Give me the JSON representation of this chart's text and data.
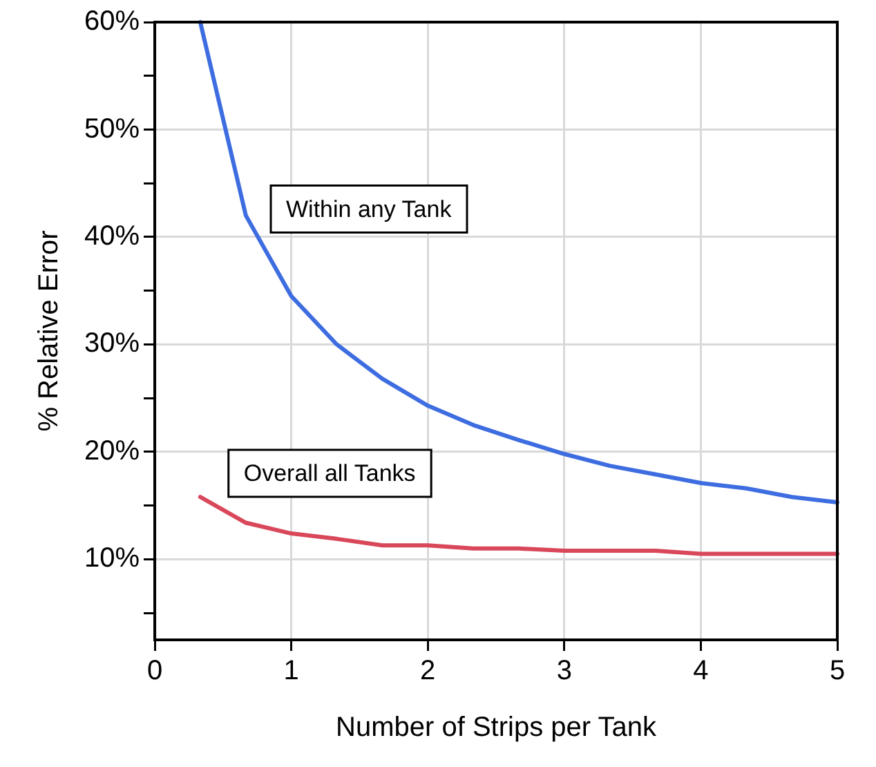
{
  "chart_data": {
    "type": "line",
    "xlabel": "Number of Strips per Tank",
    "ylabel": "% Relative Error",
    "x": [
      0.333,
      0.667,
      1,
      1.333,
      1.667,
      2,
      2.333,
      2.667,
      3,
      3.333,
      3.667,
      4,
      4.333,
      4.667,
      5
    ],
    "series": [
      {
        "name": "Within any Tank",
        "color": "#3d6de0",
        "values": [
          60,
          42,
          34.5,
          30,
          26.8,
          24.3,
          22.5,
          21.1,
          19.8,
          18.7,
          17.9,
          17.1,
          16.6,
          15.8,
          15.3
        ]
      },
      {
        "name": "Overall all Tanks",
        "color": "#d9475a",
        "values": [
          15.8,
          13.4,
          12.4,
          11.9,
          11.3,
          11.3,
          11,
          11,
          10.8,
          10.8,
          10.8,
          10.5,
          10.5,
          10.5,
          10.5
        ]
      }
    ],
    "xlim": [
      0,
      5
    ],
    "xticks": [
      0,
      1,
      2,
      3,
      4,
      5
    ],
    "ylim": [
      2.5,
      60
    ],
    "yticks": [
      {
        "value": 5,
        "label": null
      },
      {
        "value": 10,
        "label": "10%"
      },
      {
        "value": 15,
        "label": null
      },
      {
        "value": 20,
        "label": "20%"
      },
      {
        "value": 25,
        "label": null
      },
      {
        "value": 30,
        "label": "30%"
      },
      {
        "value": 35,
        "label": null
      },
      {
        "value": 40,
        "label": "40%"
      },
      {
        "value": 45,
        "label": null
      },
      {
        "value": 50,
        "label": "50%"
      },
      {
        "value": 55,
        "label": null
      },
      {
        "value": 60,
        "label": "60%"
      }
    ],
    "grid": true,
    "legend": false,
    "marker": "none",
    "line_style": "solid"
  }
}
